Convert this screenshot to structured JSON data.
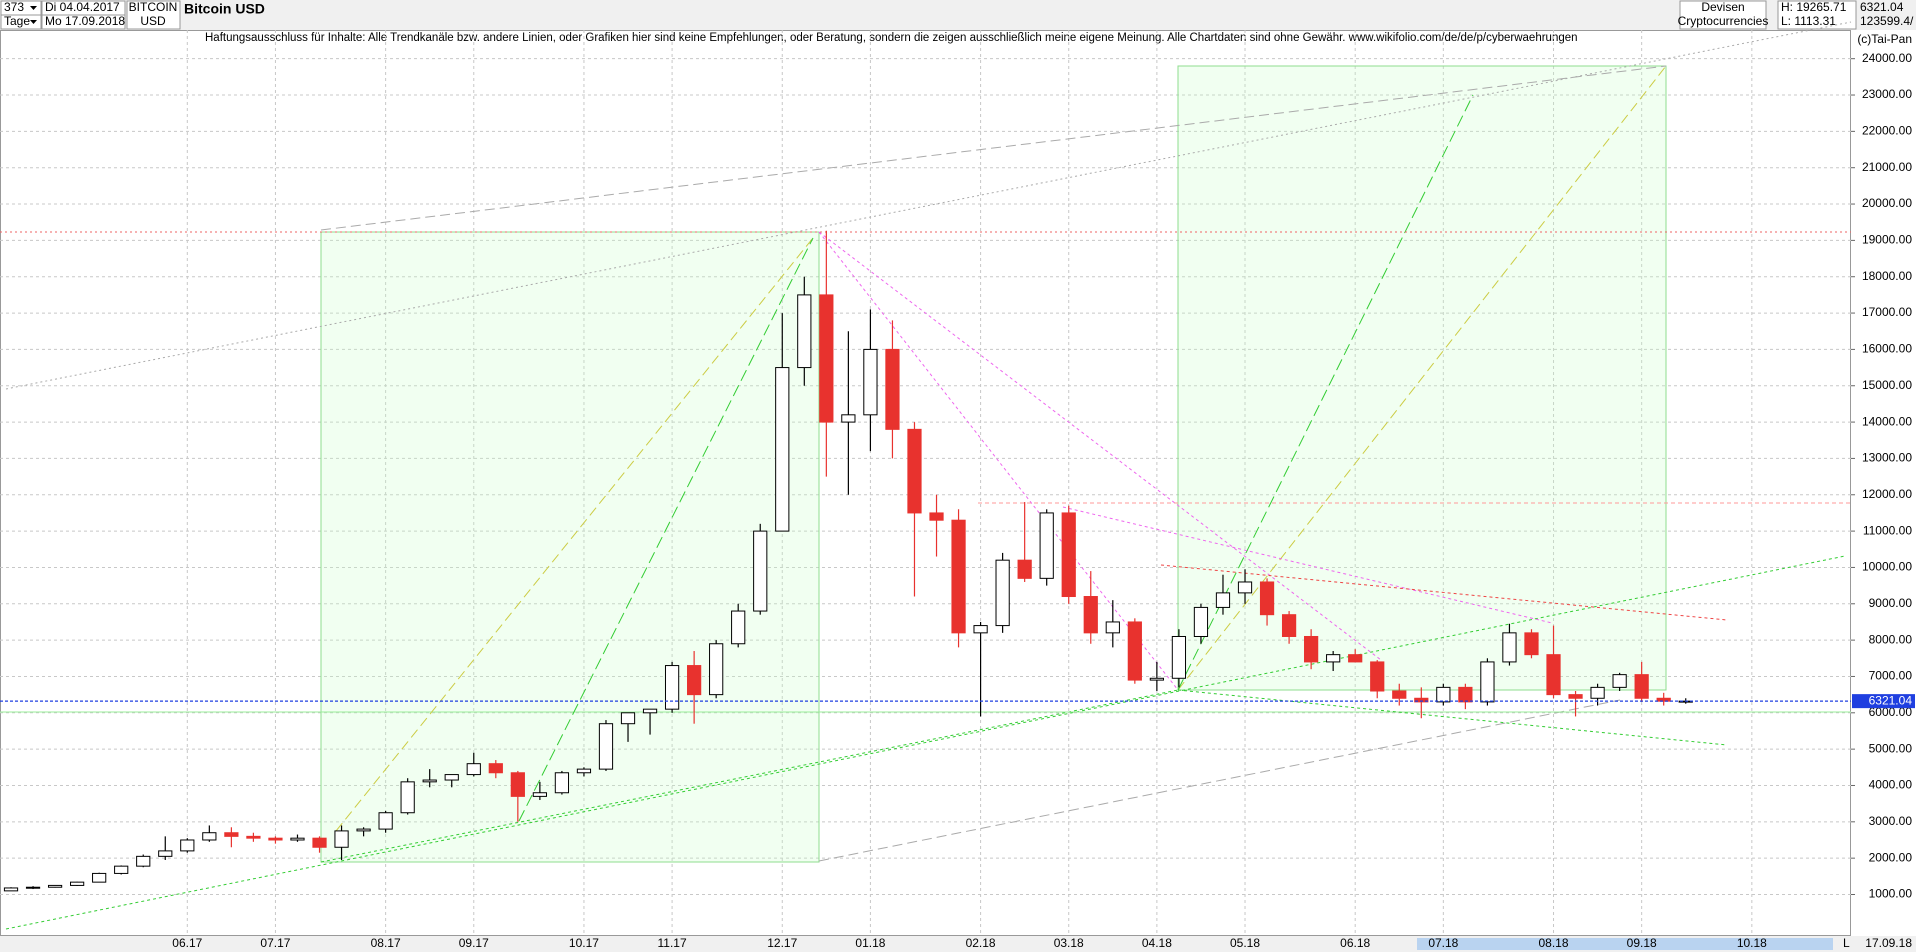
{
  "header": {
    "count": "373",
    "period": "Tage",
    "start_date": "Di 04.04.2017",
    "end_date": "Mo 17.09.2018",
    "symbol": "BITCOIN",
    "currency": "USD",
    "name": "Bitcoin USD",
    "market": "Devisen",
    "group": "Cryptocurrencies",
    "high": "H: 19265.71",
    "low": "L: 1113.31",
    "last": "6321.04",
    "volume": "123599.4/",
    "copyright": "(c)Tai-Pan",
    "footer_l": "L",
    "footer_date": "17.09.18"
  },
  "chart_data": {
    "type": "candlestick",
    "subtitle": "Haftungsausschluss für Inhalte: Alle Trendkanäle bzw. andere Linien, oder Grafiken hier sind keine Empfehlungen, oder Beratung, sondern die zeigen ausschließlich meine eigene Meinung. Alle Chartdaten sind ohne Gewähr.  www.wikifolio.com/de/de/p/cyberwaehrungen",
    "categories": [
      null,
      null,
      null,
      null,
      null,
      null,
      null,
      null,
      "06.17",
      null,
      null,
      null,
      "07.17",
      null,
      null,
      null,
      null,
      "08.17",
      null,
      null,
      null,
      "09.17",
      null,
      null,
      null,
      null,
      "10.17",
      null,
      null,
      null,
      "11.17",
      null,
      null,
      null,
      null,
      "12.17",
      null,
      null,
      null,
      "01.18",
      null,
      null,
      null,
      null,
      "02.18",
      null,
      null,
      null,
      "03.18",
      null,
      null,
      null,
      "04.18",
      null,
      null,
      null,
      "05.18",
      null,
      null,
      null,
      null,
      "06.18",
      null,
      null,
      null,
      "07.18",
      null,
      null,
      null,
      null,
      "08.18",
      null,
      null,
      null,
      "09.18",
      null,
      null,
      null,
      null,
      "10.18",
      null,
      null,
      null,
      null
    ],
    "open": [
      1100,
      1180,
      1200,
      1250,
      1340,
      1580,
      1780,
      2050,
      2200,
      2500,
      2700,
      2600,
      2550,
      2500,
      2550,
      2300,
      2750,
      2800,
      3250,
      4100,
      4150,
      4300,
      4600,
      4350,
      3700,
      3800,
      4350,
      4450,
      5700,
      6000,
      6100,
      7300,
      6500,
      7900,
      8800,
      11000,
      15500,
      17500,
      14000,
      14200,
      16000,
      13800,
      11500,
      11300,
      8200,
      8400,
      10200,
      9700,
      11500,
      9200,
      8200,
      8500,
      6900,
      6950,
      8100,
      8900,
      9300,
      9600,
      8700,
      8100,
      7400,
      7600,
      7400,
      6600,
      6400,
      6300,
      6700,
      6300,
      7400,
      8200,
      7600,
      6500,
      6400,
      6700,
      7050,
      6400,
      6320,
      null,
      null,
      null,
      null,
      null,
      null,
      null
    ],
    "high": [
      1200,
      1230,
      1260,
      1350,
      1600,
      1800,
      2100,
      2600,
      2550,
      2900,
      2850,
      2700,
      2600,
      2650,
      2600,
      2900,
      2850,
      3300,
      4200,
      4450,
      4300,
      4900,
      4700,
      4400,
      4100,
      4400,
      4500,
      5800,
      6000,
      6100,
      7400,
      7700,
      8000,
      9000,
      11200,
      17000,
      18000,
      19265.71,
      16500,
      17100,
      16800,
      14000,
      12000,
      11600,
      8500,
      10400,
      11800,
      11600,
      11700,
      9900,
      9100,
      8600,
      7400,
      8300,
      9000,
      9800,
      9950,
      9700,
      8800,
      8300,
      7700,
      7750,
      7450,
      6800,
      6700,
      6800,
      6800,
      7500,
      8450,
      8300,
      8400,
      6600,
      6800,
      7100,
      7400,
      6550,
      6400,
      null,
      null,
      null,
      null,
      null,
      null,
      null
    ],
    "low": [
      1113.31,
      1150,
      1190,
      1240,
      1330,
      1550,
      1750,
      1950,
      2150,
      2450,
      2300,
      2450,
      2400,
      2450,
      2150,
      1950,
      2600,
      2700,
      3200,
      3950,
      3950,
      4250,
      4200,
      3000,
      3600,
      3750,
      4250,
      4400,
      5200,
      5400,
      6000,
      5700,
      6400,
      7800,
      8700,
      11000,
      15000,
      12500,
      12000,
      13200,
      13000,
      9200,
      10300,
      7800,
      5900,
      8200,
      9600,
      9500,
      9000,
      7900,
      7800,
      6800,
      6600,
      6700,
      7900,
      8700,
      9000,
      8400,
      7900,
      7200,
      7150,
      7400,
      6400,
      6200,
      5850,
      6200,
      6100,
      6200,
      7300,
      7500,
      6400,
      5900,
      6200,
      6600,
      6300,
      6200,
      6250,
      null,
      null,
      null,
      null,
      null,
      null,
      null
    ],
    "close": [
      1180,
      1200,
      1250,
      1340,
      1580,
      1780,
      2050,
      2200,
      2500,
      2700,
      2600,
      2550,
      2500,
      2550,
      2300,
      2750,
      2800,
      3250,
      4100,
      4150,
      4300,
      4600,
      4350,
      3700,
      3800,
      4350,
      4450,
      5700,
      6000,
      6100,
      7300,
      6500,
      7900,
      8800,
      11000,
      15500,
      17500,
      14000,
      14200,
      16000,
      13800,
      11500,
      11300,
      8200,
      8400,
      10200,
      9700,
      11500,
      9200,
      8200,
      8500,
      6900,
      6950,
      8100,
      8900,
      9300,
      9600,
      8700,
      8100,
      7400,
      7600,
      7400,
      6600,
      6400,
      6300,
      6700,
      6300,
      7400,
      8200,
      7600,
      6500,
      6400,
      6700,
      7050,
      6400,
      6320,
      6321.04,
      null,
      null,
      null,
      null,
      null,
      null,
      null
    ],
    "up_color": "#ffffff",
    "down_color": "#e8322e",
    "edge_color": "#000000",
    "last_price": 6321.04,
    "last_price_color": "#1f3fe0",
    "ylim": [
      -142,
      24294
    ],
    "yticks": [
      {
        "value": 1000,
        "label": "1000.00"
      },
      {
        "value": 2000,
        "label": "2000.00"
      },
      {
        "value": 3000,
        "label": "3000.00"
      },
      {
        "value": 4000,
        "label": "4000.00"
      },
      {
        "value": 5000,
        "label": "5000.00"
      },
      {
        "value": 6000,
        "label": "6000.00"
      },
      {
        "value": 7000,
        "label": "7000.00"
      },
      {
        "value": 8000,
        "label": "8000.00"
      },
      {
        "value": 9000,
        "label": "9000.00"
      },
      {
        "value": 10000,
        "label": "10000.00"
      },
      {
        "value": 11000,
        "label": "11000.00"
      },
      {
        "value": 12000,
        "label": "12000.00"
      },
      {
        "value": 13000,
        "label": "13000.00"
      },
      {
        "value": 14000,
        "label": "14000.00"
      },
      {
        "value": 15000,
        "label": "15000.00"
      },
      {
        "value": 16000,
        "label": "16000.00"
      },
      {
        "value": 17000,
        "label": "17000.00"
      },
      {
        "value": 18000,
        "label": "18000.00"
      },
      {
        "value": 19000,
        "label": "19000.00"
      },
      {
        "value": 20000,
        "label": "20000.00"
      },
      {
        "value": 21000,
        "label": "21000.00"
      },
      {
        "value": 22000,
        "label": "22000.00"
      },
      {
        "value": 23000,
        "label": "23000.00"
      },
      {
        "value": 24000,
        "label": "24000.00"
      }
    ],
    "grid": true
  }
}
